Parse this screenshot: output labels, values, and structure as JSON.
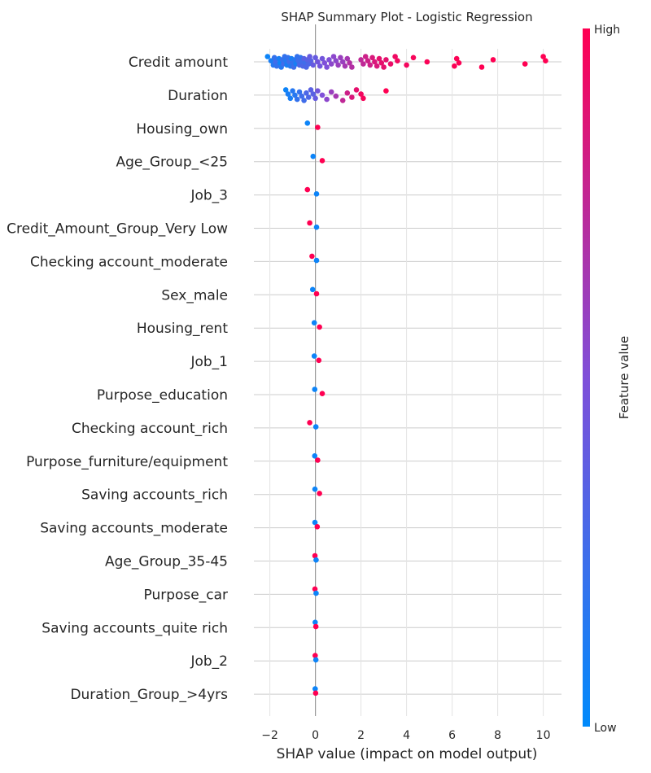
{
  "chart_data": {
    "type": "scatter",
    "title": "SHAP Summary Plot - Logistic Regression",
    "xlabel": "SHAP value (impact on model output)",
    "ylabel": "",
    "xlim": [
      -2.7,
      10.8
    ],
    "xticks": [
      -2,
      0,
      2,
      4,
      6,
      8,
      10
    ],
    "grid": true,
    "colorbar": {
      "label": "Feature value",
      "high_label": "High",
      "low_label": "Low",
      "low_color": "#008afb",
      "mid_color": "#7f4fd9",
      "high_color": "#ff0052"
    },
    "features": [
      {
        "name": "Credit amount",
        "points": [
          [
            -2.1,
            0.05
          ],
          [
            -1.95,
            0.1
          ],
          [
            -1.85,
            0.15
          ],
          [
            -1.8,
            0.2
          ],
          [
            -1.75,
            0.25
          ],
          [
            -1.7,
            0.2
          ],
          [
            -1.6,
            0.1
          ],
          [
            -1.55,
            0.05
          ],
          [
            -1.5,
            0.15
          ],
          [
            -1.45,
            0.2
          ],
          [
            -1.4,
            0.25
          ],
          [
            -1.35,
            0.2
          ],
          [
            -1.3,
            0.15
          ],
          [
            -1.25,
            0.1
          ],
          [
            -1.2,
            0.2
          ],
          [
            -1.15,
            0.25
          ],
          [
            -1.1,
            0.15
          ],
          [
            -1.05,
            0.1
          ],
          [
            -1.0,
            0.2
          ],
          [
            -0.95,
            0.25
          ],
          [
            -0.9,
            0.15
          ],
          [
            -0.85,
            0.1
          ],
          [
            -0.8,
            0.2
          ],
          [
            -0.75,
            0.25
          ],
          [
            -0.7,
            0.3
          ],
          [
            -0.65,
            0.2
          ],
          [
            -0.6,
            0.25
          ],
          [
            -0.55,
            0.3
          ],
          [
            -0.5,
            0.35
          ],
          [
            -0.45,
            0.25
          ],
          [
            -0.4,
            0.3
          ],
          [
            -0.35,
            0.35
          ],
          [
            -0.3,
            0.3
          ],
          [
            -0.25,
            0.4
          ],
          [
            -0.2,
            0.35
          ],
          [
            -0.1,
            0.4
          ],
          [
            0.0,
            0.4
          ],
          [
            0.1,
            0.45
          ],
          [
            0.2,
            0.45
          ],
          [
            0.3,
            0.45
          ],
          [
            0.4,
            0.5
          ],
          [
            0.5,
            0.5
          ],
          [
            0.6,
            0.5
          ],
          [
            0.7,
            0.55
          ],
          [
            0.8,
            0.55
          ],
          [
            0.9,
            0.55
          ],
          [
            1.0,
            0.6
          ],
          [
            1.1,
            0.6
          ],
          [
            1.2,
            0.6
          ],
          [
            1.3,
            0.65
          ],
          [
            1.4,
            0.65
          ],
          [
            1.5,
            0.7
          ],
          [
            1.6,
            0.7
          ],
          [
            2.0,
            0.75
          ],
          [
            2.1,
            0.75
          ],
          [
            2.2,
            0.8
          ],
          [
            2.3,
            0.8
          ],
          [
            2.4,
            0.8
          ],
          [
            2.5,
            0.85
          ],
          [
            2.6,
            0.85
          ],
          [
            2.7,
            0.85
          ],
          [
            2.8,
            0.9
          ],
          [
            2.9,
            0.9
          ],
          [
            3.0,
            0.9
          ],
          [
            3.1,
            0.9
          ],
          [
            3.3,
            0.92
          ],
          [
            3.5,
            0.94
          ],
          [
            3.6,
            0.95
          ],
          [
            4.0,
            0.96
          ],
          [
            4.3,
            0.97
          ],
          [
            4.9,
            0.98
          ],
          [
            6.1,
            0.99
          ],
          [
            6.2,
            0.99
          ],
          [
            6.3,
            0.99
          ],
          [
            7.3,
            1.0
          ],
          [
            7.8,
            1.0
          ],
          [
            9.2,
            1.0
          ],
          [
            10.0,
            1.0
          ],
          [
            10.1,
            1.0
          ]
        ]
      },
      {
        "name": "Duration",
        "points": [
          [
            -1.3,
            0.05
          ],
          [
            -1.2,
            0.1
          ],
          [
            -1.1,
            0.1
          ],
          [
            -1.0,
            0.15
          ],
          [
            -0.9,
            0.15
          ],
          [
            -0.8,
            0.2
          ],
          [
            -0.7,
            0.2
          ],
          [
            -0.6,
            0.25
          ],
          [
            -0.5,
            0.25
          ],
          [
            -0.4,
            0.3
          ],
          [
            -0.3,
            0.3
          ],
          [
            -0.2,
            0.35
          ],
          [
            -0.1,
            0.35
          ],
          [
            0.0,
            0.4
          ],
          [
            0.1,
            0.45
          ],
          [
            0.3,
            0.5
          ],
          [
            0.5,
            0.55
          ],
          [
            0.7,
            0.6
          ],
          [
            0.9,
            0.65
          ],
          [
            1.2,
            0.75
          ],
          [
            1.4,
            0.8
          ],
          [
            1.6,
            0.85
          ],
          [
            1.8,
            0.9
          ],
          [
            2.0,
            0.95
          ],
          [
            2.1,
            0.97
          ],
          [
            3.1,
            1.0
          ]
        ]
      },
      {
        "name": "Housing_own",
        "points": [
          [
            -0.35,
            0.05
          ],
          [
            0.1,
            1.0
          ]
        ]
      },
      {
        "name": "Age_Group_<25",
        "points": [
          [
            -0.1,
            0.05
          ],
          [
            0.3,
            1.0
          ]
        ]
      },
      {
        "name": "Job_3",
        "points": [
          [
            -0.35,
            1.0
          ],
          [
            0.05,
            0.05
          ]
        ]
      },
      {
        "name": "Credit_Amount_Group_Very Low",
        "points": [
          [
            -0.25,
            1.0
          ],
          [
            0.05,
            0.05
          ]
        ]
      },
      {
        "name": "Checking account_moderate",
        "points": [
          [
            -0.15,
            1.0
          ],
          [
            0.05,
            0.05
          ]
        ]
      },
      {
        "name": "Sex_male",
        "points": [
          [
            -0.12,
            0.05
          ],
          [
            0.05,
            1.0
          ]
        ]
      },
      {
        "name": "Housing_rent",
        "points": [
          [
            -0.05,
            0.05
          ],
          [
            0.18,
            1.0
          ]
        ]
      },
      {
        "name": "Job_1",
        "points": [
          [
            -0.05,
            0.05
          ],
          [
            0.15,
            1.0
          ]
        ]
      },
      {
        "name": "Purpose_education",
        "points": [
          [
            -0.03,
            0.05
          ],
          [
            0.3,
            1.0
          ]
        ]
      },
      {
        "name": "Checking account_rich",
        "points": [
          [
            -0.25,
            1.0
          ],
          [
            0.02,
            0.05
          ]
        ]
      },
      {
        "name": "Purpose_furniture/equipment",
        "points": [
          [
            -0.03,
            0.05
          ],
          [
            0.1,
            1.0
          ]
        ]
      },
      {
        "name": "Saving accounts_rich",
        "points": [
          [
            -0.02,
            0.05
          ],
          [
            0.18,
            1.0
          ]
        ]
      },
      {
        "name": "Saving accounts_moderate",
        "points": [
          [
            -0.02,
            0.05
          ],
          [
            0.08,
            1.0
          ]
        ]
      },
      {
        "name": "Age_Group_35-45",
        "points": [
          [
            -0.02,
            1.0
          ],
          [
            0.03,
            0.05
          ]
        ]
      },
      {
        "name": "Purpose_car",
        "points": [
          [
            -0.02,
            1.0
          ],
          [
            0.03,
            0.05
          ]
        ]
      },
      {
        "name": "Saving accounts_quite rich",
        "points": [
          [
            -0.01,
            0.05
          ],
          [
            0.02,
            1.0
          ]
        ]
      },
      {
        "name": "Job_2",
        "points": [
          [
            -0.01,
            1.0
          ],
          [
            0.02,
            0.05
          ]
        ]
      },
      {
        "name": "Duration_Group_>4yrs",
        "points": [
          [
            -0.01,
            0.05
          ],
          [
            0.01,
            1.0
          ]
        ]
      }
    ]
  }
}
